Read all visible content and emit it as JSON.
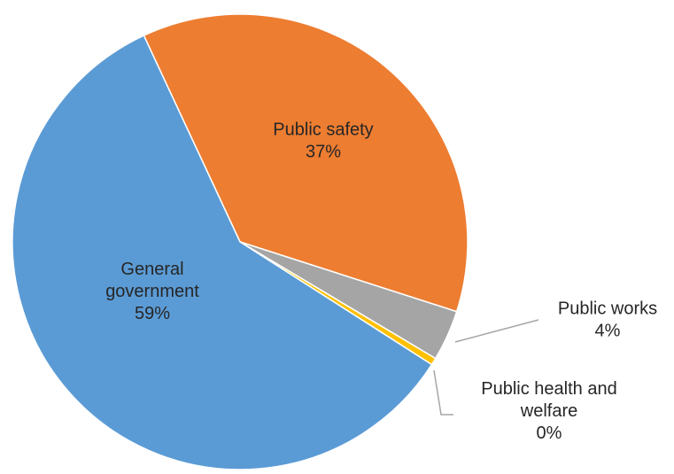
{
  "chart_data": {
    "type": "pie",
    "title": "",
    "legend": "none",
    "start_angle_deg": 245,
    "direction": "clockwise",
    "slices": [
      {
        "name": "Public safety",
        "value": 36.9,
        "percent_label": "37%",
        "color": "#ED7D31",
        "label_lines": [
          "Public safety"
        ]
      },
      {
        "name": "Public works",
        "value": 3.6,
        "percent_label": "4%",
        "color": "#A5A5A5",
        "label_lines": [
          "Public works"
        ]
      },
      {
        "name": "Public health and welfare",
        "value": 0.5,
        "percent_label": "0%",
        "color": "#FFC000",
        "label_lines": [
          "Public health and",
          "welfare"
        ]
      },
      {
        "name": "General government",
        "value": 59.0,
        "percent_label": "59%",
        "color": "#5B9BD5",
        "label_lines": [
          "General",
          "government"
        ]
      }
    ]
  }
}
